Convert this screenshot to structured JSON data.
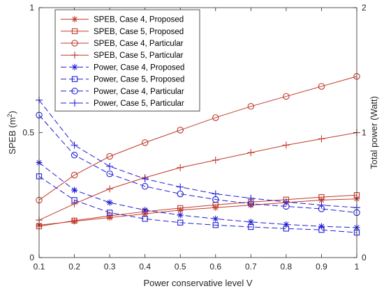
{
  "chart_data": {
    "type": "line",
    "x": [
      0.1,
      0.2,
      0.3,
      0.4,
      0.5,
      0.6,
      0.7,
      0.8,
      0.9,
      1
    ],
    "xlabel": "Power conservative level V",
    "xlim": [
      0.1,
      1
    ],
    "xticks": [
      "0.1",
      "0.2",
      "0.3",
      "0.4",
      "0.5",
      "0.6",
      "0.7",
      "0.8",
      "0.9",
      "1"
    ],
    "y_left": {
      "label_prefix": "SPEB (m",
      "label_sup": "2",
      "label_suffix": ")",
      "lim": [
        0,
        1
      ],
      "ticks": [
        "0",
        "0.5",
        "1"
      ]
    },
    "y_right": {
      "label": "Total power (Watt)",
      "lim": [
        0,
        2
      ],
      "ticks": [
        "0",
        "1",
        "2"
      ]
    },
    "grid": false,
    "legend_position": "top-left",
    "colors": {
      "speb": "#c0392b",
      "power": "#1f1fd6",
      "axis": "#262626"
    },
    "series": [
      {
        "name": "SPEB, Case 4, Proposed",
        "axis": "left",
        "color": "#c0392b",
        "dash": "solid",
        "marker": "asterisk",
        "values": [
          0.13,
          0.145,
          0.16,
          0.175,
          0.19,
          0.2,
          0.21,
          0.22,
          0.23,
          0.235
        ]
      },
      {
        "name": "SPEB, Case 5, Proposed",
        "axis": "left",
        "color": "#c0392b",
        "dash": "solid",
        "marker": "square",
        "values": [
          0.125,
          0.148,
          0.167,
          0.184,
          0.198,
          0.211,
          0.222,
          0.232,
          0.242,
          0.25
        ]
      },
      {
        "name": "SPEB, Case 4, Particular",
        "axis": "left",
        "color": "#c0392b",
        "dash": "solid",
        "marker": "circle",
        "values": [
          0.23,
          0.33,
          0.405,
          0.46,
          0.51,
          0.56,
          0.605,
          0.645,
          0.685,
          0.725
        ]
      },
      {
        "name": "SPEB, Case 5, Particular",
        "axis": "left",
        "color": "#c0392b",
        "dash": "solid",
        "marker": "plus",
        "values": [
          0.15,
          0.215,
          0.275,
          0.32,
          0.36,
          0.39,
          0.42,
          0.45,
          0.475,
          0.5
        ]
      },
      {
        "name": "Power, Case 4, Proposed",
        "axis": "right",
        "color": "#1f1fd6",
        "dash": "dashed",
        "marker": "asterisk",
        "values": [
          0.76,
          0.54,
          0.44,
          0.38,
          0.34,
          0.31,
          0.285,
          0.265,
          0.25,
          0.24
        ]
      },
      {
        "name": "Power, Case 5, Proposed",
        "axis": "right",
        "color": "#1f1fd6",
        "dash": "dashed",
        "marker": "square",
        "values": [
          0.65,
          0.46,
          0.36,
          0.31,
          0.28,
          0.26,
          0.245,
          0.232,
          0.222,
          0.2
        ]
      },
      {
        "name": "Power, Case 4, Particular",
        "axis": "right",
        "color": "#1f1fd6",
        "dash": "dashed",
        "marker": "circle",
        "values": [
          1.14,
          0.82,
          0.67,
          0.57,
          0.51,
          0.465,
          0.43,
          0.41,
          0.39,
          0.36
        ]
      },
      {
        "name": "Power, Case 5, Particular",
        "axis": "right",
        "color": "#1f1fd6",
        "dash": "dashed",
        "marker": "plus",
        "values": [
          1.26,
          0.9,
          0.73,
          0.63,
          0.565,
          0.51,
          0.475,
          0.445,
          0.42,
          0.4
        ]
      }
    ]
  }
}
